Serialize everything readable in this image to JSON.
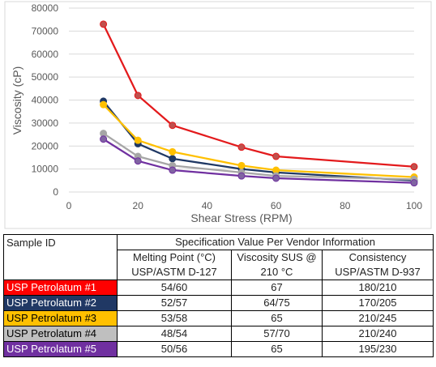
{
  "chart_data": {
    "type": "line",
    "xlabel": "Shear Stress (RPM)",
    "ylabel": "Viscosity (cP)",
    "xlim": [
      0,
      100
    ],
    "ylim": [
      0,
      80000
    ],
    "xticks": [
      0,
      20,
      40,
      60,
      80,
      100
    ],
    "yticks": [
      0,
      10000,
      20000,
      30000,
      40000,
      50000,
      60000,
      70000,
      80000
    ],
    "grid": "horizontal",
    "x": [
      10,
      20,
      30,
      50,
      60,
      100
    ],
    "series": [
      {
        "color": "#E31A1C",
        "marker": "#C0504D",
        "values": [
          73000,
          42000,
          29000,
          19500,
          15500,
          11000
        ]
      },
      {
        "color": "#1F3864",
        "marker": "#1F3864",
        "values": [
          39500,
          21000,
          14500,
          10000,
          8500,
          5000
        ]
      },
      {
        "color": "#FFC000",
        "marker": "#FFC000",
        "values": [
          38000,
          22500,
          17500,
          11500,
          9500,
          6500
        ]
      },
      {
        "color": "#A6A6A6",
        "marker": "#A6A6A6",
        "values": [
          25500,
          15500,
          11500,
          8500,
          7000,
          5500
        ]
      },
      {
        "color": "#7030A0",
        "marker": "#8064A2",
        "values": [
          23000,
          13500,
          9500,
          7000,
          6000,
          4000
        ]
      }
    ]
  },
  "table": {
    "sample_id_header": "Sample ID",
    "spec_header": "Specification Value Per Vendor Information",
    "col_headers": [
      {
        "line1": "Melting Point (°C)",
        "line2": "USP/ASTM D-127"
      },
      {
        "line1": "Viscosity SUS @",
        "line2": "210 °C"
      },
      {
        "line1": "Consistency",
        "line2": "USP/ASTM D-937"
      }
    ],
    "rows": [
      {
        "name": "USP Petrolatum #1",
        "color": "#FF0000",
        "melting": "54/60",
        "viscosity": "67",
        "consistency": "180/210"
      },
      {
        "name": "USP Petrolatum #2",
        "color": "#203864",
        "melting": "52/57",
        "viscosity": "64/75",
        "consistency": "170/205"
      },
      {
        "name": "USP Petrolatum #3",
        "color": "#FFC000",
        "melting": "53/58",
        "viscosity": "65",
        "consistency": "210/245"
      },
      {
        "name": "USP Petrolatum #4",
        "color": "#BFBFBF",
        "melting": "48/54",
        "viscosity": "57/70",
        "consistency": "210/240"
      },
      {
        "name": "USP Petrolatum #5",
        "color": "#7030A0",
        "melting": "50/56",
        "viscosity": "65",
        "consistency": "195/230"
      }
    ]
  }
}
